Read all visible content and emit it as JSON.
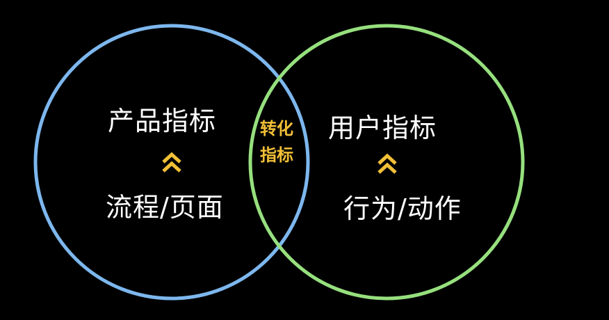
{
  "colors": {
    "background": "#000000",
    "left_circle": "#7db7ee",
    "right_circle": "#96e07e",
    "text": "#ffffff",
    "accent": "#f2c037"
  },
  "left": {
    "top_label": "产品指标",
    "bottom_label": "流程/页面",
    "icon": "double-chevron-up-icon"
  },
  "right": {
    "top_label": "用户指标",
    "bottom_label": "行为/动作",
    "icon": "double-chevron-up-icon"
  },
  "intersection": {
    "line1": "转化",
    "line2": "指标"
  }
}
